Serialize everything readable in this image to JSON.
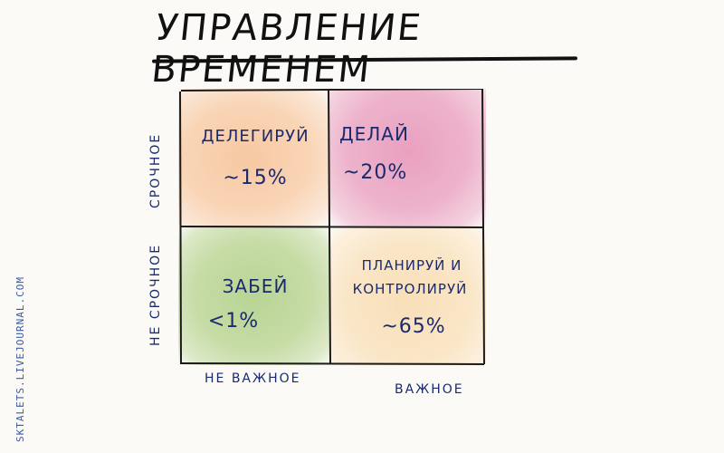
{
  "title": "УПРАВЛЕНИЕ ВРЕМЕНЕМ",
  "matrix": {
    "cells": [
      {
        "label": "ДЕЛЕГИРУЙ",
        "label_line2": "",
        "value": "~15%",
        "color": "#f7c8a3"
      },
      {
        "label": "ДЕЛАЙ",
        "label_line2": "",
        "value": "~20%",
        "color": "#e9a0bf"
      },
      {
        "label": "ЗАБЕЙ",
        "label_line2": "",
        "value": "<1%",
        "color": "#b9d494"
      },
      {
        "label": "ПЛАНИРУЙ И",
        "label_line2": "КОНТРОЛИРУЙ",
        "value": "~65%",
        "color": "#f8dfb8"
      }
    ],
    "x_axis": [
      "НЕ ВАЖНОЕ",
      "ВАЖНОЕ"
    ],
    "y_axis": [
      "СРОЧНОЕ",
      "НЕ СРОЧНОЕ"
    ]
  },
  "credit": "SKTALETS.LIVEJOURNAL.COM"
}
